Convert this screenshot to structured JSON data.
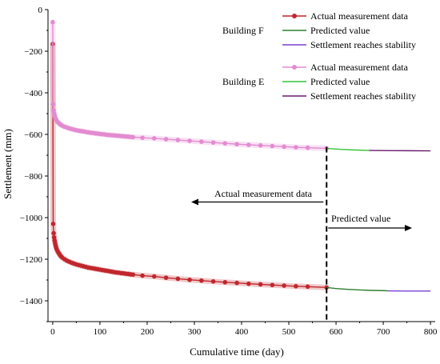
{
  "chart_data": {
    "type": "line",
    "xlabel": "Cumulative time (day)",
    "ylabel": "Settlement (mm)",
    "xlim": [
      -10,
      810
    ],
    "ylim": [
      -1500,
      0
    ],
    "xticks": [
      0,
      100,
      200,
      300,
      400,
      500,
      600,
      700,
      800
    ],
    "yticks": [
      0,
      -200,
      -400,
      -600,
      -800,
      -1000,
      -1200,
      -1400
    ],
    "grid": false,
    "legend_position": "top-right",
    "legend_groups": [
      {
        "group_label": "Building F",
        "entries": [
          "Actual measurement data",
          "Predicted value",
          "Settlement reaches stability"
        ]
      },
      {
        "group_label": "Building E",
        "entries": [
          "Actual measurement data",
          "Predicted value",
          "Settlement reaches stability"
        ]
      }
    ],
    "divider_x": 580,
    "annotations": [
      {
        "text": "Actual measurement data",
        "arrow": "left"
      },
      {
        "text": "Predicted value",
        "arrow": "right"
      }
    ],
    "series": [
      {
        "name": "Actual measurement data",
        "group": "Building F",
        "color": "#c0272d",
        "marker": "circle",
        "x": [
          0,
          1,
          2,
          3,
          4,
          5,
          6,
          7,
          8,
          10,
          12,
          14,
          16,
          18,
          20,
          25,
          30,
          35,
          40,
          45,
          50,
          55,
          60,
          65,
          70,
          75,
          80,
          85,
          90,
          95,
          100,
          105,
          110,
          115,
          120,
          125,
          130,
          135,
          140,
          145,
          150,
          155,
          160,
          165,
          170,
          190,
          215,
          240,
          265,
          290,
          315,
          340,
          365,
          390,
          415,
          440,
          465,
          490,
          515,
          540,
          580
        ],
        "y": [
          -165,
          -1030,
          -1075,
          -1095,
          -1110,
          -1122,
          -1133,
          -1142,
          -1150,
          -1160,
          -1168,
          -1175,
          -1182,
          -1187,
          -1192,
          -1200,
          -1207,
          -1212,
          -1217,
          -1221,
          -1225,
          -1228,
          -1231,
          -1234,
          -1237,
          -1240,
          -1242,
          -1244,
          -1246,
          -1248,
          -1250,
          -1252,
          -1254,
          -1256,
          -1258,
          -1260,
          -1262,
          -1264,
          -1265,
          -1267,
          -1268,
          -1270,
          -1271,
          -1273,
          -1274,
          -1279,
          -1283,
          -1289,
          -1294,
          -1299,
          -1303,
          -1307,
          -1311,
          -1314,
          -1318,
          -1321,
          -1324,
          -1327,
          -1330,
          -1332,
          -1336
        ]
      },
      {
        "name": "Predicted value",
        "group": "Building F",
        "color": "#2e7d32",
        "x": [
          580,
          600,
          625,
          650,
          675,
          700,
          710
        ],
        "y": [
          -1336,
          -1341,
          -1345,
          -1348,
          -1350,
          -1351,
          -1352
        ]
      },
      {
        "name": "Settlement reaches stability",
        "group": "Building F",
        "color": "#7b3fd6",
        "x": [
          710,
          750,
          800
        ],
        "y": [
          -1352,
          -1353,
          -1353
        ]
      },
      {
        "name": "Actual measurement data",
        "group": "Building E",
        "color": "#e38bd0",
        "marker": "circle",
        "x": [
          0,
          1,
          2,
          3,
          4,
          5,
          6,
          7,
          8,
          10,
          12,
          14,
          16,
          18,
          20,
          25,
          30,
          35,
          40,
          45,
          50,
          55,
          60,
          65,
          70,
          75,
          80,
          85,
          90,
          95,
          100,
          105,
          110,
          115,
          120,
          125,
          130,
          135,
          140,
          145,
          150,
          155,
          160,
          165,
          170,
          190,
          215,
          240,
          265,
          290,
          315,
          340,
          365,
          390,
          415,
          440,
          465,
          490,
          515,
          540,
          580
        ],
        "y": [
          -60,
          -455,
          -485,
          -500,
          -510,
          -518,
          -524,
          -529,
          -533,
          -539,
          -544,
          -548,
          -552,
          -555,
          -558,
          -563,
          -567,
          -571,
          -574,
          -577,
          -580,
          -582,
          -584,
          -586,
          -588,
          -590,
          -592,
          -593,
          -595,
          -596,
          -598,
          -599,
          -600,
          -602,
          -603,
          -604,
          -605,
          -606,
          -607,
          -608,
          -609,
          -610,
          -611,
          -612,
          -613,
          -616,
          -619,
          -623,
          -627,
          -631,
          -635,
          -639,
          -643,
          -647,
          -650,
          -653,
          -656,
          -659,
          -662,
          -664,
          -667
        ]
      },
      {
        "name": "Predicted value",
        "group": "Building E",
        "color": "#36c436",
        "x": [
          580,
          610,
          640,
          670
        ],
        "y": [
          -667,
          -672,
          -675,
          -677
        ]
      },
      {
        "name": "Settlement reaches stability",
        "group": "Building E",
        "color": "#6a1a6e",
        "x": [
          670,
          720,
          800
        ],
        "y": [
          -677,
          -678,
          -679
        ]
      }
    ]
  }
}
